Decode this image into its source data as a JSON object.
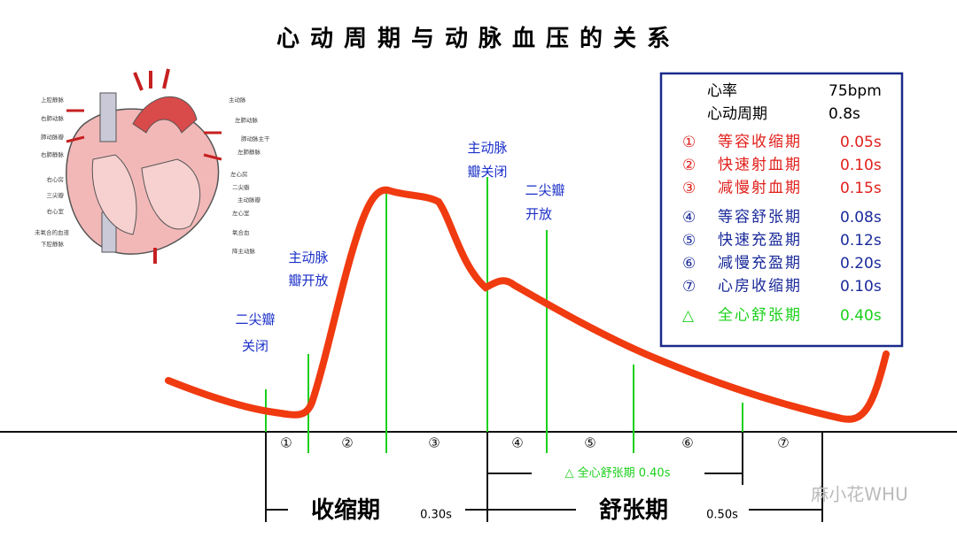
{
  "title": "心动周期与动脉血压的关系",
  "info": {
    "heart_rate": {
      "label": "心率",
      "value": "75bpm"
    },
    "cycle": {
      "label": "心动周期",
      "value": "0.8s"
    },
    "phases": [
      {
        "marker": "①",
        "name": "等容收缩期",
        "duration": "0.05s"
      },
      {
        "marker": "②",
        "name": "快速射血期",
        "duration": "0.10s"
      },
      {
        "marker": "③",
        "name": "减慢射血期",
        "duration": "0.15s"
      },
      {
        "marker": "④",
        "name": "等容舒张期",
        "duration": "0.08s"
      },
      {
        "marker": "⑤",
        "name": "快速充盈期",
        "duration": "0.12s"
      },
      {
        "marker": "⑥",
        "name": "减慢充盈期",
        "duration": "0.20s"
      },
      {
        "marker": "⑦",
        "name": "心房收缩期",
        "duration": "0.10s"
      },
      {
        "marker": "△",
        "name": "全心舒张期",
        "duration": "0.40s"
      }
    ]
  },
  "annotations": [
    [
      "二尖瓣",
      "关闭"
    ],
    [
      "主动脉",
      "瓣开放"
    ],
    [
      "主动脉",
      "瓣关闭"
    ],
    [
      "二尖瓣",
      "开放"
    ]
  ],
  "phase_markers": [
    "①",
    "②",
    "③",
    "④",
    "⑤",
    "⑥",
    "⑦"
  ],
  "diastole_span": "△ 全心舒张期 0.40s",
  "systole": {
    "label": "收缩期",
    "duration": "0.30s"
  },
  "diastole": {
    "label": "舒张期",
    "duration": "0.50s"
  },
  "heart_labels": [
    "上腔静脉",
    "右肺动脉",
    "肺动脉瓣",
    "右肺静脉",
    "右心房",
    "三尖瓣",
    "右心室",
    "未氧合的血液",
    "下腔静脉",
    "主动脉",
    "左肺动脉",
    "肺动脉主干",
    "左肺静脉",
    "左心房",
    "二尖瓣",
    "主动脉瓣",
    "左心室",
    "氧合血",
    "降主动脉"
  ],
  "watermark": "麻小花WHU"
}
